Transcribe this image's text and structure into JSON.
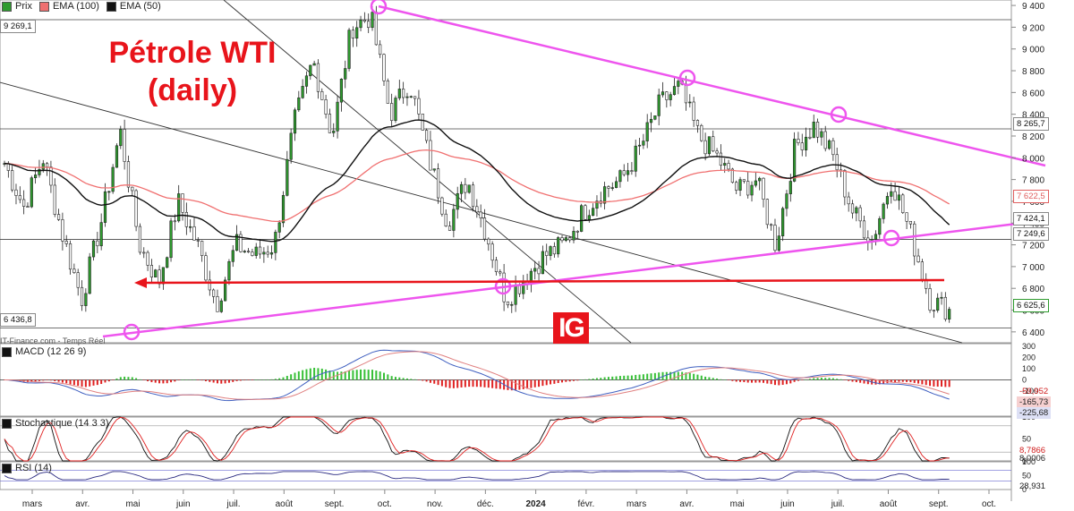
{
  "title": {
    "line1": "Pétrole WTI",
    "line2": "(daily)"
  },
  "brand": {
    "logo_text": "IG",
    "source": "IT-Finance.com - Temps Réel"
  },
  "legend": [
    {
      "label": "Prix",
      "color": "#2e9b2e"
    },
    {
      "label": "EMA (100)",
      "color": "#f07070"
    },
    {
      "label": "EMA (50)",
      "color": "#111111"
    }
  ],
  "indicators": {
    "macd": "MACD (12 26 9)",
    "stoch": "Stochastique (14 3 3)",
    "rsi": "RSI (14)"
  },
  "price_tags": {
    "left_top": "9 269,1",
    "left_bottom": "6 436,8",
    "right_8265": "8 265,7",
    "right_7622": "7 622,5",
    "right_7424": "7 424,1",
    "right_7249": "7 249,6",
    "right_last": "6 625,6"
  },
  "macd_tags": [
    "-59,952",
    "-165,73",
    "-225,68"
  ],
  "stoch_tags": [
    "8,7866",
    "8,0006"
  ],
  "rsi_tag": "28,931",
  "chart_data": {
    "type": "candlestick",
    "x_months": [
      "mars",
      "avr.",
      "mai",
      "juin",
      "juil.",
      "août",
      "sept.",
      "oct.",
      "nov.",
      "déc.",
      "2024",
      "févr.",
      "mars",
      "avr.",
      "mai",
      "juin",
      "juil.",
      "août",
      "sept.",
      "oct."
    ],
    "y_ticks": [
      "9 400",
      "9 200",
      "9 000",
      "8 800",
      "8 600",
      "8 400",
      "8 200",
      "8 000",
      "7 800",
      "7 600",
      "7 400",
      "7 200",
      "7 000",
      "6 800",
      "6 600",
      "6 400"
    ],
    "ylim": [
      6300,
      9450
    ],
    "anchor_closes": [
      7950,
      7550,
      8000,
      7300,
      6700,
      7400,
      8250,
      7200,
      6850,
      7600,
      7200,
      6650,
      7200,
      7100,
      7200,
      8300,
      8900,
      8200,
      9200,
      9300,
      8400,
      8700,
      8000,
      7400,
      7800,
      7300,
      6700,
      6900,
      7100,
      7200,
      7500,
      7700,
      7800,
      8100,
      8500,
      8650,
      8200,
      8000,
      7700,
      7800,
      7200,
      8100,
      8300,
      8000,
      7500,
      7250,
      7800,
      7300,
      6700,
      6600
    ],
    "horizontal_levels": [
      9269.1,
      8265.7,
      7249.6,
      6436.8
    ],
    "support_arrow_level": 6625.6,
    "macd_ticks": [
      "300",
      "200",
      "100",
      "0",
      "-100",
      "-200",
      "-300"
    ],
    "stoch_ticks": [
      "100",
      "50",
      "0"
    ],
    "rsi_ticks": [
      "100",
      "50",
      "0"
    ]
  }
}
